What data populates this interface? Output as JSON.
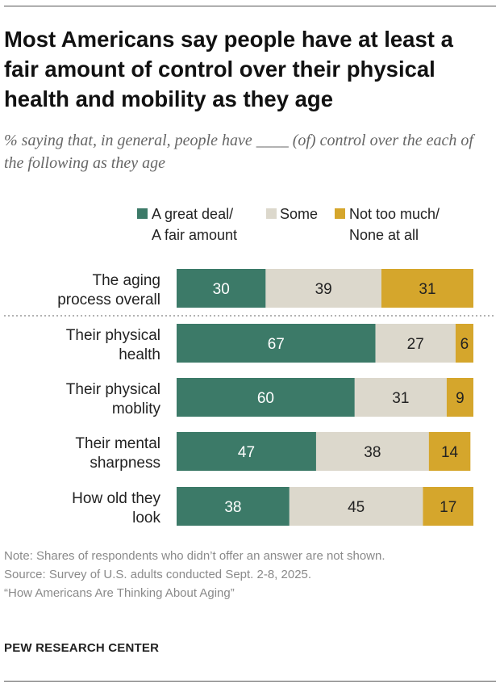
{
  "title": "Most Americans say people have at least a fair amount of control over their physical health and mobility as they age",
  "subtitle": "% saying that, in general, people have ____ (of) control over the each of the following as they age",
  "legend": [
    {
      "label_line1": "A great deal/",
      "label_line2": "A fair amount",
      "color": "#3c7a68"
    },
    {
      "label_line1": "Some",
      "label_line2": "",
      "color": "#dcd8cc"
    },
    {
      "label_line1": "Not too much/",
      "label_line2": "None at all",
      "color": "#d5a62c"
    }
  ],
  "chart_data": {
    "type": "bar",
    "orientation": "horizontal",
    "stacked": true,
    "categories": [
      [
        "The aging",
        "process overall"
      ],
      [
        "Their physical",
        "health"
      ],
      [
        "Their physical",
        "moblity"
      ],
      [
        "Their mental",
        "sharpness"
      ],
      [
        "How old they",
        "look"
      ]
    ],
    "series": [
      {
        "name": "A great deal/ A fair amount",
        "values": [
          30,
          67,
          60,
          47,
          38
        ],
        "color": "#3c7a68",
        "label_color": "#ffffff"
      },
      {
        "name": "Some",
        "values": [
          39,
          27,
          31,
          38,
          45
        ],
        "color": "#dcd8cc",
        "label_color": "#222222"
      },
      {
        "name": "Not too much/ None at all",
        "values": [
          31,
          6,
          9,
          14,
          17
        ],
        "color": "#d5a62c",
        "label_color": "#222222"
      }
    ],
    "separator_after_first": true,
    "xlim": [
      0,
      100
    ]
  },
  "notes": {
    "note": "Note: Shares of respondents who didn’t offer an answer are not shown.",
    "source": "Source: Survey of U.S. adults conducted Sept. 2-8, 2025.",
    "report": "“How Americans Are Thinking About Aging”"
  },
  "brand": "PEW RESEARCH CENTER"
}
